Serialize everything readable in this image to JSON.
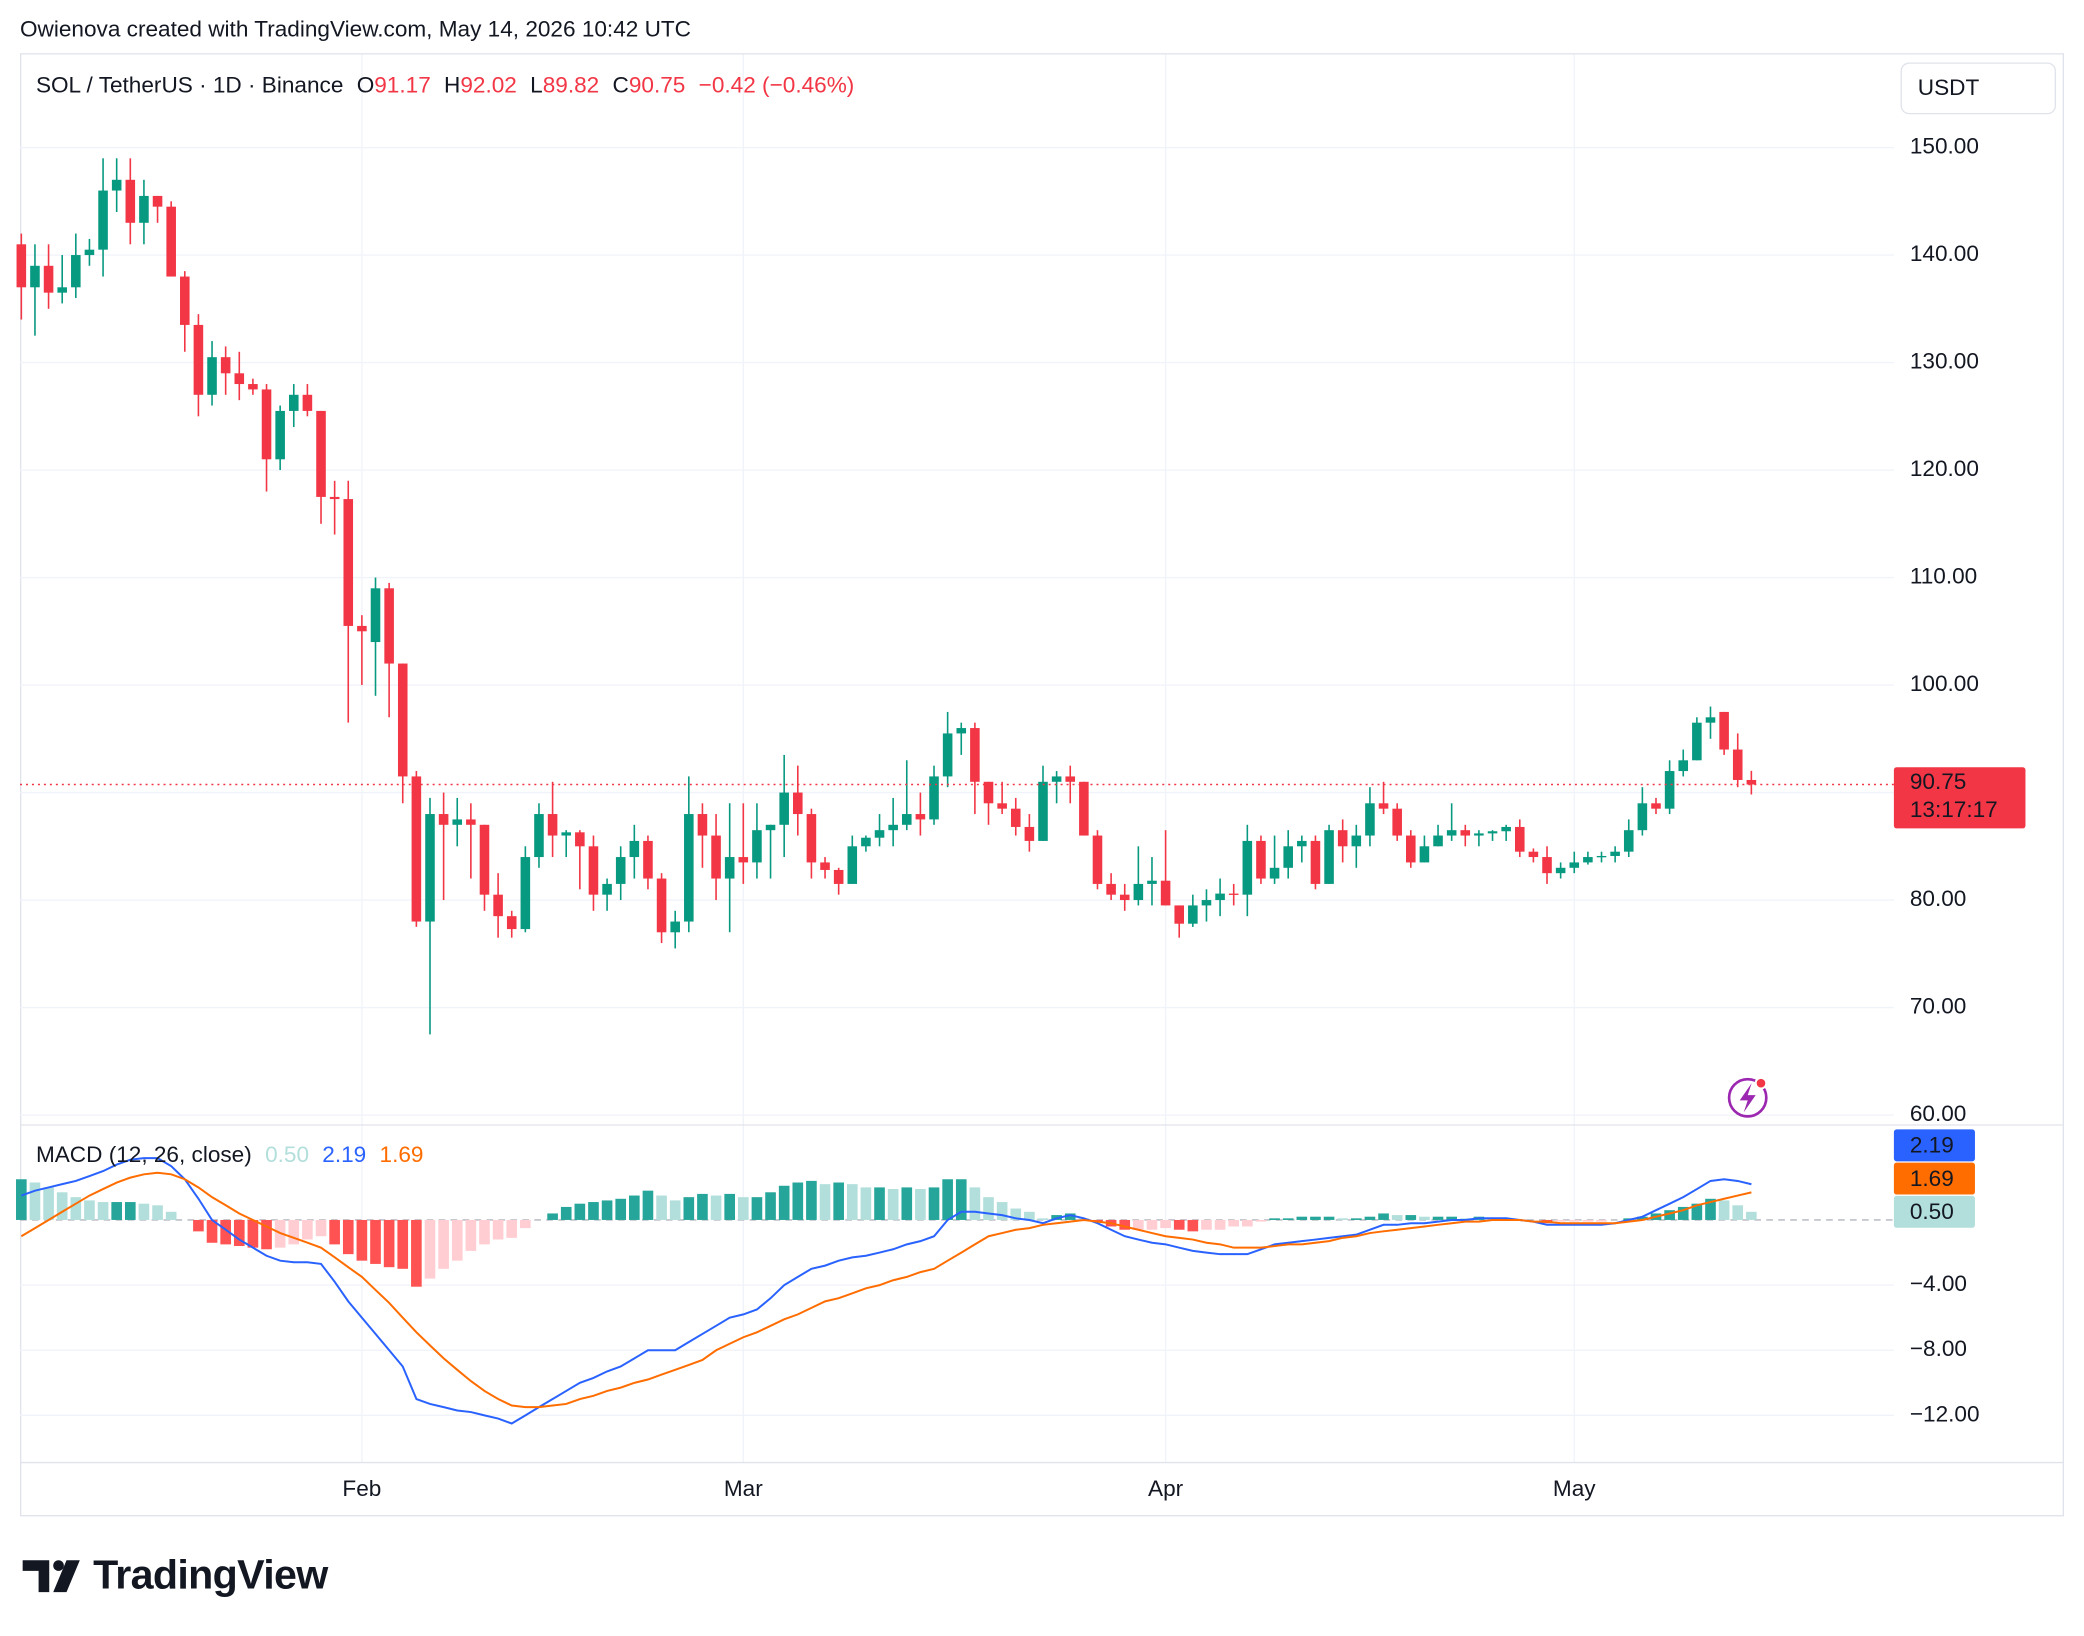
{
  "header": {
    "attribution": "Owienova created with TradingView.com, May 14, 2026 10:42 UTC"
  },
  "footer": {
    "logo": "TradingView"
  },
  "chart_data": [
    {
      "type": "candlestick",
      "title": "SOL / TetherUS · 1D · Binance",
      "ohlc_labels": [
        "O",
        "H",
        "L",
        "C"
      ],
      "change": "−0.42 (−0.46%)",
      "currency": "USDT",
      "countdown": "13:17:17",
      "categories": [
        null,
        null,
        null,
        null,
        null,
        null,
        null,
        null,
        null,
        null,
        null,
        null,
        null,
        null,
        null,
        null,
        null,
        null,
        null,
        null,
        null,
        null,
        null,
        null,
        null,
        "Feb",
        null,
        null,
        null,
        null,
        null,
        null,
        null,
        null,
        null,
        null,
        null,
        null,
        null,
        null,
        null,
        null,
        null,
        null,
        null,
        null,
        null,
        null,
        null,
        null,
        null,
        null,
        null,
        "Mar",
        null,
        null,
        null,
        null,
        null,
        null,
        null,
        null,
        null,
        null,
        null,
        null,
        null,
        null,
        null,
        null,
        null,
        null,
        null,
        null,
        null,
        null,
        null,
        null,
        null,
        null,
        null,
        null,
        null,
        null,
        "Apr",
        null,
        null,
        null,
        null,
        null,
        null,
        null,
        null,
        null,
        null,
        null,
        null,
        null,
        null,
        null,
        null,
        null,
        null,
        null,
        null,
        null,
        null,
        null,
        null,
        null,
        null,
        null,
        null,
        null,
        "May",
        null,
        null,
        null,
        null,
        null,
        null,
        null,
        null,
        null,
        null,
        null,
        null,
        null
      ],
      "open": [
        141,
        137,
        139,
        136.5,
        137,
        140,
        140.5,
        146,
        147,
        143,
        145.5,
        144.5,
        138,
        133.5,
        127,
        130.5,
        129,
        128,
        127.5,
        121,
        125.5,
        127,
        125.5,
        117.5,
        117.3,
        105.5,
        104,
        109,
        102,
        91.5,
        78,
        88,
        87,
        87.5,
        87,
        80.5,
        78.5,
        77.3,
        84,
        88,
        86,
        86.3,
        85,
        80.5,
        81.5,
        84,
        85.5,
        82,
        77,
        78,
        88,
        86,
        82,
        84,
        83.5,
        86.5,
        87,
        90,
        88,
        83.5,
        82.8,
        81.5,
        85,
        85.8,
        86.5,
        87,
        88,
        87.5,
        91.5,
        95.5,
        96,
        91,
        89,
        88.5,
        86.8,
        85.5,
        91,
        91.5,
        91,
        86,
        81.5,
        80.5,
        80,
        81.5,
        81.8,
        79.5,
        77.8,
        79.5,
        80,
        80.6,
        80.5,
        85.5,
        82,
        83,
        85,
        85.5,
        81.5,
        86.5,
        85,
        86,
        89,
        88.5,
        86,
        83.5,
        85,
        86,
        86.5,
        86,
        86.2,
        86.4,
        86.8,
        84.5,
        84,
        82.5,
        83,
        83.5,
        84,
        84.1,
        84.5,
        86.5,
        89,
        88.5,
        92,
        93,
        96.5,
        97.5,
        94,
        91.17
      ],
      "high": [
        142,
        141,
        141,
        140,
        142,
        141.5,
        149,
        149,
        149,
        147,
        145.5,
        145,
        138.5,
        134.5,
        132,
        131.5,
        131,
        128.5,
        128,
        126,
        128,
        128,
        125.5,
        119,
        119,
        106.5,
        110,
        109.5,
        102,
        92,
        89.5,
        90,
        89.5,
        89,
        87,
        82.5,
        79,
        85,
        89,
        91,
        86.5,
        86.5,
        86,
        82,
        85,
        87,
        86,
        82.5,
        79,
        91.5,
        89,
        88,
        89,
        89,
        89,
        87,
        93.5,
        92.5,
        88.5,
        84,
        83,
        86,
        86,
        88,
        89.5,
        93,
        90,
        92.5,
        97.5,
        96.5,
        96.5,
        91,
        91,
        89.5,
        88,
        92.5,
        92,
        92.5,
        91,
        86.5,
        82.5,
        81.5,
        85,
        84,
        86.5,
        79.5,
        80.5,
        81,
        82,
        81.5,
        87,
        86,
        86,
        86.5,
        86,
        86,
        87,
        87.5,
        87,
        90.5,
        91,
        89,
        86.5,
        86,
        87,
        89,
        87,
        86.5,
        86.5,
        87,
        87.5,
        84.8,
        85,
        83.5,
        84.5,
        84.5,
        84.5,
        85,
        87.5,
        90.5,
        89.5,
        93,
        94,
        97,
        98,
        97.5,
        95.5,
        92.02
      ],
      "low": [
        134,
        132.5,
        135,
        135.5,
        136,
        139,
        138,
        144,
        141,
        141,
        143,
        138,
        131,
        125,
        126,
        127,
        126.5,
        127,
        118,
        120,
        124,
        125,
        115,
        114,
        96.5,
        100,
        99,
        97,
        89,
        77.5,
        67.5,
        80,
        85,
        82,
        79,
        76.5,
        76.5,
        77,
        83,
        84,
        84,
        81,
        79,
        79,
        80,
        82,
        81,
        76,
        75.5,
        77,
        83,
        80,
        77,
        81.5,
        82,
        82,
        84,
        86,
        82,
        82,
        80.5,
        81.5,
        84.5,
        85,
        85,
        86.5,
        86,
        87,
        90.5,
        93.5,
        88,
        87,
        88,
        86,
        84.5,
        85.5,
        89,
        89,
        86,
        81,
        80,
        79,
        79.5,
        79.5,
        79.5,
        76.5,
        77.5,
        78,
        78.5,
        79.5,
        78.5,
        81.5,
        81.5,
        82,
        83.5,
        81,
        81.5,
        83.5,
        83,
        85,
        88,
        85.5,
        83,
        83.5,
        85,
        85.5,
        85,
        85,
        85.5,
        85.5,
        84,
        83.5,
        81.5,
        82,
        82.5,
        83.3,
        83.5,
        83.5,
        84,
        86,
        88,
        88,
        91.5,
        93,
        95,
        93.5,
        90.5,
        89.82
      ],
      "close": [
        137,
        139,
        136.5,
        137,
        140,
        140.5,
        146,
        147,
        143,
        145.5,
        144.5,
        138,
        133.5,
        127,
        130.5,
        129,
        128,
        127.5,
        121,
        125.5,
        127,
        125.5,
        117.5,
        117.3,
        105.5,
        105,
        109,
        102,
        91.5,
        78,
        88,
        87,
        87.5,
        87,
        80.5,
        78.5,
        77.3,
        84,
        88,
        86,
        86.3,
        85,
        80.5,
        81.5,
        84,
        85.5,
        82,
        77,
        78,
        88,
        86,
        82,
        84,
        83.5,
        86.5,
        87,
        90,
        88,
        83.5,
        82.8,
        81.5,
        85,
        85.8,
        86.5,
        87,
        88,
        87.5,
        91.5,
        95.5,
        96,
        91,
        89,
        88.5,
        86.8,
        85.5,
        91,
        91.5,
        91,
        86,
        81.5,
        80.5,
        80,
        81.5,
        81.8,
        79.5,
        77.8,
        79.5,
        80,
        80.6,
        80.5,
        85.5,
        82,
        83,
        85,
        85.5,
        81.5,
        86.5,
        85,
        86,
        89,
        88.5,
        86,
        83.5,
        85,
        86,
        86.5,
        86,
        86.2,
        86.4,
        86.8,
        84.5,
        84,
        82.5,
        83,
        83.5,
        84,
        84.1,
        84.5,
        86.5,
        89,
        88.5,
        92,
        93,
        96.5,
        97,
        94,
        91.17,
        90.75
      ],
      "up_color": "#089981",
      "down_color": "#f23645",
      "ylim": [
        59.26,
        158.78
      ],
      "yticks": [
        {
          "value": 60,
          "label": "60.00"
        },
        {
          "value": 70,
          "label": "70.00"
        },
        {
          "value": 80,
          "label": "80.00"
        },
        {
          "value": 90,
          "label": "90.00"
        },
        {
          "value": 100,
          "label": "100.00"
        },
        {
          "value": 110,
          "label": "110.00"
        },
        {
          "value": 120,
          "label": "120.00"
        },
        {
          "value": 130,
          "label": "130.00"
        },
        {
          "value": 140,
          "label": "140.00"
        },
        {
          "value": 150,
          "label": "150.00"
        }
      ],
      "grid": true,
      "last_price_line": true
    },
    {
      "type": "macd",
      "title": "MACD (12, 26, close)",
      "histogram": {
        "colors": [
          "#26a69a",
          "#b2dfdb",
          "#ff5252",
          "#ffcdd2"
        ],
        "values": [
          2.5,
          2.3,
          2.0,
          1.7,
          1.4,
          1.2,
          1.1,
          1.1,
          1.1,
          1.0,
          0.9,
          0.5,
          0.0,
          -0.7,
          -1.4,
          -1.5,
          -1.6,
          -1.7,
          -1.8,
          -1.7,
          -1.5,
          -1.2,
          -1.0,
          -1.5,
          -2.1,
          -2.5,
          -2.7,
          -2.9,
          -3.0,
          -4.1,
          -3.6,
          -3.0,
          -2.5,
          -1.9,
          -1.5,
          -1.2,
          -1.1,
          -0.5,
          0.0,
          0.4,
          0.8,
          1.0,
          1.1,
          1.2,
          1.3,
          1.5,
          1.8,
          1.5,
          1.2,
          1.4,
          1.6,
          1.5,
          1.6,
          1.4,
          1.4,
          1.7,
          2.1,
          2.3,
          2.4,
          2.2,
          2.3,
          2.2,
          2.0,
          2.0,
          1.9,
          2.0,
          1.9,
          2.0,
          2.5,
          2.5,
          2.0,
          1.4,
          1.1,
          0.7,
          0.5,
          0.1,
          0.3,
          0.4,
          0.1,
          -0.1,
          -0.4,
          -0.6,
          -0.6,
          -0.6,
          -0.5,
          -0.6,
          -0.7,
          -0.6,
          -0.6,
          -0.4,
          -0.4,
          -0.1,
          0.1,
          0.1,
          0.2,
          0.2,
          0.2,
          0.1,
          0.1,
          0.2,
          0.4,
          0.3,
          0.3,
          0.2,
          0.2,
          0.2,
          0.1,
          0.2,
          0.1,
          0.1,
          0.0,
          0.0,
          -0.2,
          -0.1,
          -0.1,
          -0.1,
          -0.1,
          0.0,
          0.1,
          0.2,
          0.4,
          0.6,
          0.8,
          1.0,
          1.3,
          1.2,
          0.9,
          0.5
        ],
        "value_labels": [
          null,
          null,
          null,
          null,
          null,
          null,
          null,
          null,
          null,
          null,
          null,
          null,
          null,
          null,
          null,
          null,
          null,
          null,
          null,
          null,
          null,
          null,
          null,
          null,
          null,
          null,
          null,
          null,
          null,
          null,
          null,
          null,
          null,
          null,
          null,
          null,
          null,
          null,
          null,
          null,
          null,
          null,
          null,
          null,
          null,
          null,
          null,
          null,
          null,
          null,
          null,
          null,
          null,
          null,
          null,
          null,
          null,
          null,
          null,
          null,
          null,
          null,
          null,
          null,
          null,
          null,
          null,
          null,
          null,
          null,
          null,
          null,
          null,
          null,
          null,
          null,
          null,
          null,
          null,
          null,
          null,
          null,
          null,
          null,
          null,
          null,
          null,
          null,
          null,
          null,
          null,
          null,
          null,
          null,
          null,
          null,
          null,
          null,
          null,
          null,
          null,
          null,
          null,
          null,
          null,
          null,
          null,
          null,
          null,
          null,
          null,
          null,
          null,
          null,
          null,
          null,
          null,
          null,
          null,
          null,
          null,
          null,
          null,
          null,
          null,
          null,
          null,
          "0.50"
        ]
      },
      "macd_line": {
        "color": "#2962ff",
        "values": [
          1.5,
          1.8,
          2.0,
          2.2,
          2.4,
          2.7,
          3.0,
          3.4,
          3.7,
          3.8,
          3.8,
          3.3,
          2.5,
          1.3,
          0.0,
          -0.6,
          -1.2,
          -1.7,
          -2.2,
          -2.5,
          -2.6,
          -2.6,
          -2.7,
          -3.8,
          -5.0,
          -6.0,
          -7.0,
          -8.0,
          -9.0,
          -11.0,
          -11.3,
          -11.5,
          -11.7,
          -11.8,
          -12.0,
          -12.2,
          -12.5,
          -12.0,
          -11.5,
          -11.0,
          -10.5,
          -10.0,
          -9.7,
          -9.3,
          -9.0,
          -8.5,
          -8.0,
          -8.0,
          -8.0,
          -7.5,
          -7.0,
          -6.5,
          -6.0,
          -5.8,
          -5.5,
          -4.8,
          -4.0,
          -3.5,
          -3.0,
          -2.8,
          -2.5,
          -2.3,
          -2.2,
          -2.0,
          -1.8,
          -1.5,
          -1.3,
          -1.0,
          0.0,
          0.5,
          0.5,
          0.4,
          0.3,
          0.1,
          0.0,
          -0.2,
          0.1,
          0.3,
          0.1,
          -0.2,
          -0.6,
          -1.0,
          -1.2,
          -1.4,
          -1.5,
          -1.7,
          -1.9,
          -2.0,
          -2.1,
          -2.1,
          -2.1,
          -1.8,
          -1.5,
          -1.4,
          -1.3,
          -1.2,
          -1.1,
          -1.0,
          -0.9,
          -0.6,
          -0.3,
          -0.3,
          -0.2,
          -0.2,
          -0.1,
          0.0,
          0.0,
          0.1,
          0.1,
          0.1,
          0.0,
          -0.1,
          -0.3,
          -0.3,
          -0.3,
          -0.3,
          -0.3,
          -0.2,
          0.0,
          0.2,
          0.6,
          1.0,
          1.4,
          1.9,
          2.4,
          2.5,
          2.4,
          2.19
        ]
      },
      "signal_line": {
        "color": "#ff6d00",
        "values": [
          -1.0,
          -0.5,
          0.0,
          0.5,
          1.0,
          1.5,
          1.9,
          2.3,
          2.6,
          2.8,
          2.9,
          2.8,
          2.5,
          2.0,
          1.4,
          0.9,
          0.4,
          0.0,
          -0.4,
          -0.8,
          -1.1,
          -1.4,
          -1.7,
          -2.3,
          -2.9,
          -3.5,
          -4.3,
          -5.1,
          -6.0,
          -6.9,
          -7.7,
          -8.5,
          -9.2,
          -9.9,
          -10.5,
          -11.0,
          -11.4,
          -11.5,
          -11.5,
          -11.4,
          -11.3,
          -11.0,
          -10.8,
          -10.5,
          -10.3,
          -10.0,
          -9.8,
          -9.5,
          -9.2,
          -8.9,
          -8.6,
          -8.0,
          -7.6,
          -7.2,
          -6.9,
          -6.5,
          -6.1,
          -5.8,
          -5.4,
          -5.0,
          -4.8,
          -4.5,
          -4.2,
          -4.0,
          -3.7,
          -3.5,
          -3.2,
          -3.0,
          -2.5,
          -2.0,
          -1.5,
          -1.0,
          -0.8,
          -0.6,
          -0.5,
          -0.3,
          -0.2,
          -0.1,
          0.0,
          -0.1,
          -0.2,
          -0.4,
          -0.6,
          -0.8,
          -1.0,
          -1.1,
          -1.2,
          -1.4,
          -1.5,
          -1.7,
          -1.7,
          -1.7,
          -1.6,
          -1.5,
          -1.5,
          -1.4,
          -1.3,
          -1.1,
          -1.0,
          -0.8,
          -0.7,
          -0.6,
          -0.5,
          -0.4,
          -0.3,
          -0.2,
          -0.1,
          -0.1,
          0.0,
          0.0,
          0.0,
          -0.1,
          -0.1,
          -0.2,
          -0.2,
          -0.2,
          -0.2,
          -0.2,
          -0.1,
          0.0,
          0.2,
          0.4,
          0.6,
          0.9,
          1.1,
          1.3,
          1.5,
          1.69
        ]
      },
      "ylim": [
        -14.86,
        5.71
      ],
      "yticks": [
        {
          "value": -4,
          "label": "−4.00"
        },
        {
          "value": -8,
          "label": "−8.00"
        },
        {
          "value": -12,
          "label": "−12.00"
        }
      ],
      "zero_line": true
    }
  ]
}
